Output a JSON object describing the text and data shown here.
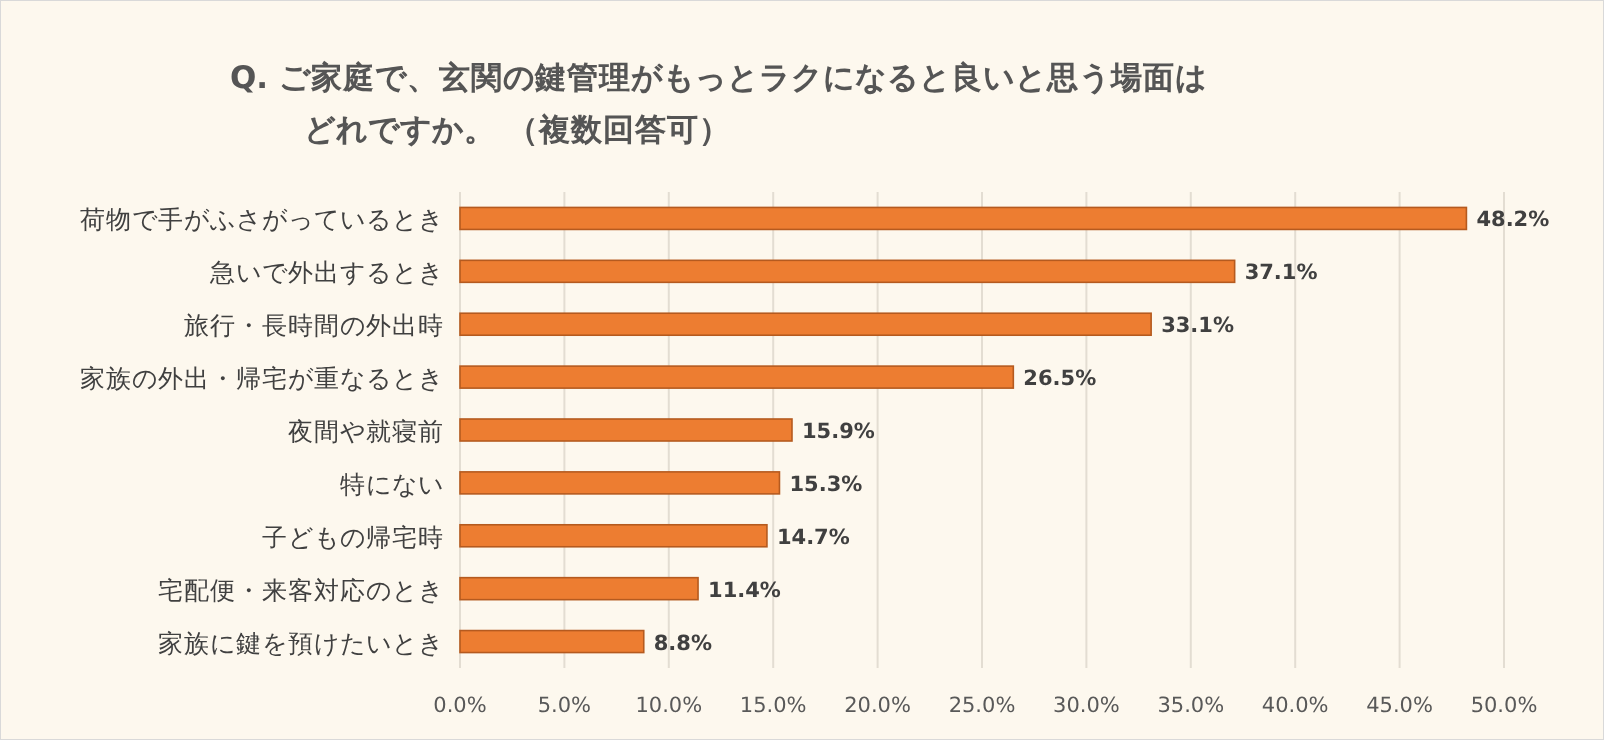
{
  "chart_data": {
    "type": "bar",
    "orientation": "horizontal",
    "title": "Q. ご家庭で、玄関の鍵管理がもっとラクになると良いと思う場面は",
    "subtitle": "どれですか。 （複数回答可）",
    "categories": [
      "荷物で手がふさがっているとき",
      "急いで外出するとき",
      "旅行・長時間の外出時",
      "家族の外出・帰宅が重なるとき",
      "夜間や就寝前",
      "特にない",
      "子どもの帰宅時",
      "宅配便・来客対応のとき",
      "家族に鍵を預けたいとき"
    ],
    "values": [
      48.2,
      37.1,
      33.1,
      26.5,
      15.9,
      15.3,
      14.7,
      11.4,
      8.8
    ],
    "value_labels": [
      "48.2%",
      "37.1%",
      "33.1%",
      "26.5%",
      "15.9%",
      "15.3%",
      "14.7%",
      "11.4%",
      "8.8%"
    ],
    "color": "#ed7d31",
    "xlim": [
      0,
      50
    ],
    "xticks": [
      {
        "value": 0,
        "label": "0.0%"
      },
      {
        "value": 5,
        "label": "5.0%"
      },
      {
        "value": 10,
        "label": "10.0%"
      },
      {
        "value": 15,
        "label": "15.0%"
      },
      {
        "value": 20,
        "label": "20.0%"
      },
      {
        "value": 25,
        "label": "25.0%"
      },
      {
        "value": 30,
        "label": "30.0%"
      },
      {
        "value": 35,
        "label": "35.0%"
      },
      {
        "value": 40,
        "label": "40.0%"
      },
      {
        "value": 45,
        "label": "45.0%"
      },
      {
        "value": 50,
        "label": "50.0%"
      }
    ],
    "grid": "x"
  }
}
